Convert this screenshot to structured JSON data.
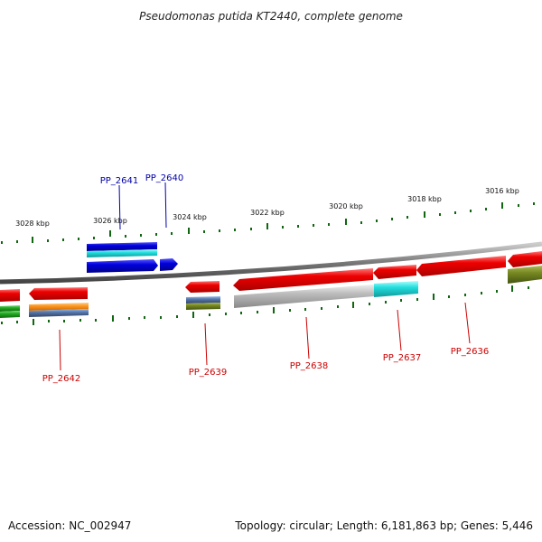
{
  "header": {
    "title": "Pseudomonas putida KT2440, complete genome"
  },
  "footer": {
    "accession": "Accession: NC_002947",
    "topology": "Topology: circular; Length: 6,181,863 bp; Genes: 5,446"
  },
  "scale_labels": [
    "3028 kbp",
    "3026 kbp",
    "3024 kbp",
    "3022 kbp",
    "3020 kbp",
    "3018 kbp",
    "3016 kbp"
  ],
  "gene_labels": {
    "pp2641": "PP_2641",
    "pp2640": "PP_2640",
    "pp2642": "PP_2642",
    "pp2639": "PP_2639",
    "pp2638": "PP_2638",
    "pp2637": "PP_2637",
    "pp2636": "PP_2636"
  },
  "colors": {
    "gene_red": "#ee0000",
    "gene_blue": "#0000dd",
    "gene_cyan": "#22dddd",
    "gene_orange": "#ff9922",
    "gene_steelblue": "#5577aa",
    "gene_olive": "#778822",
    "gene_green": "#22aa22",
    "gene_gray": "#bbbbbb",
    "backbone": "#777777",
    "tick_green": "#116611",
    "label_red": "#cc0000",
    "label_blue": "#0000aa"
  }
}
